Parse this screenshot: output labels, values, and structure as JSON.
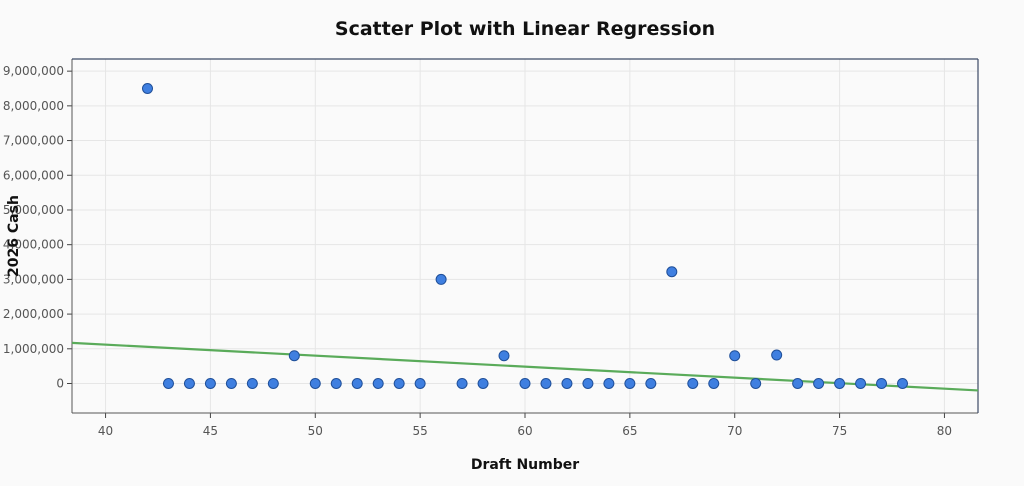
{
  "chart_data": {
    "type": "scatter",
    "title": "Scatter Plot with Linear Regression",
    "xlabel": "Draft Number",
    "ylabel": "2026 Cash",
    "xlim": [
      38.4,
      81.6
    ],
    "ylim": [
      -850000,
      9350000
    ],
    "x_ticks": [
      40,
      45,
      50,
      55,
      60,
      65,
      70,
      75,
      80
    ],
    "y_ticks": [
      0,
      1000000,
      2000000,
      3000000,
      4000000,
      5000000,
      6000000,
      7000000,
      8000000,
      9000000
    ],
    "y_tick_labels": [
      "0",
      "1,000,000",
      "2,000,000",
      "3,000,000",
      "4,000,000",
      "5,000,000",
      "6,000,000",
      "7,000,000",
      "8,000,000",
      "9,000,000"
    ],
    "grid": true,
    "points": [
      {
        "x": 42,
        "y": 8500000
      },
      {
        "x": 43,
        "y": 0
      },
      {
        "x": 44,
        "y": 0
      },
      {
        "x": 45,
        "y": 0
      },
      {
        "x": 46,
        "y": 0
      },
      {
        "x": 47,
        "y": 0
      },
      {
        "x": 48,
        "y": 0
      },
      {
        "x": 49,
        "y": 800000
      },
      {
        "x": 50,
        "y": 0
      },
      {
        "x": 51,
        "y": 0
      },
      {
        "x": 52,
        "y": 0
      },
      {
        "x": 53,
        "y": 0
      },
      {
        "x": 54,
        "y": 0
      },
      {
        "x": 55,
        "y": 0
      },
      {
        "x": 56,
        "y": 3000000
      },
      {
        "x": 57,
        "y": 0
      },
      {
        "x": 58,
        "y": 0
      },
      {
        "x": 59,
        "y": 800000
      },
      {
        "x": 60,
        "y": 0
      },
      {
        "x": 61,
        "y": 0
      },
      {
        "x": 62,
        "y": 0
      },
      {
        "x": 63,
        "y": 0
      },
      {
        "x": 64,
        "y": 0
      },
      {
        "x": 65,
        "y": 0
      },
      {
        "x": 66,
        "y": 0
      },
      {
        "x": 67,
        "y": 3220000
      },
      {
        "x": 68,
        "y": 0
      },
      {
        "x": 69,
        "y": 0
      },
      {
        "x": 70,
        "y": 800000
      },
      {
        "x": 71,
        "y": 0
      },
      {
        "x": 72,
        "y": 820000
      },
      {
        "x": 73,
        "y": 0
      },
      {
        "x": 74,
        "y": 0
      },
      {
        "x": 75,
        "y": 0
      },
      {
        "x": 76,
        "y": 0
      },
      {
        "x": 77,
        "y": 0
      },
      {
        "x": 78,
        "y": 0
      }
    ],
    "regression": {
      "x": [
        38.4,
        81.6
      ],
      "y": [
        1170000,
        -200000
      ]
    },
    "colors": {
      "point_fill": "#3f7fe0",
      "point_stroke": "#1f4f99",
      "regression_line": "#5aab5a"
    }
  }
}
